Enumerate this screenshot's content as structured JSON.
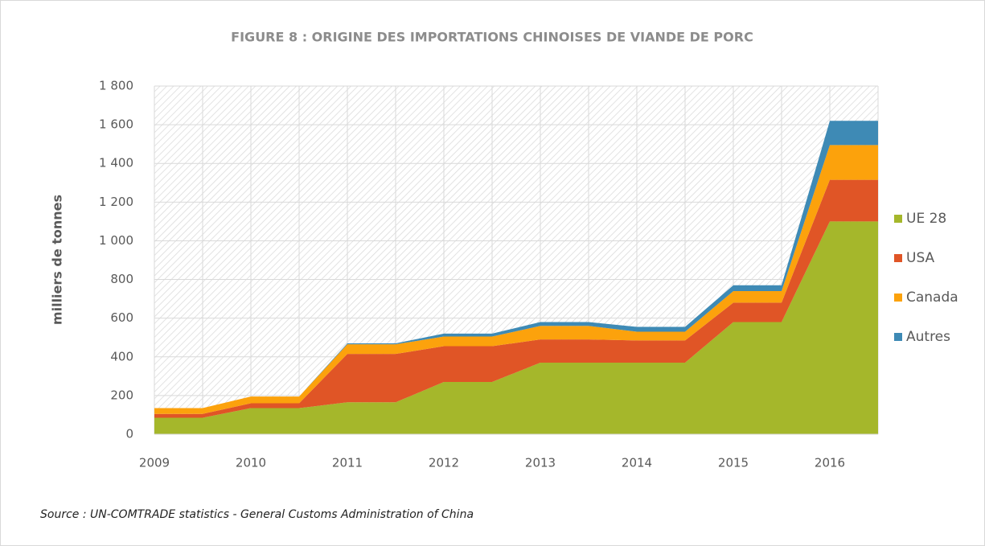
{
  "chart_data": {
    "type": "area",
    "title": "FIGURE 8 : ORIGINE DES IMPORTATIONS CHINOISES DE VIANDE DE PORC",
    "ylabel": "milliers de tonnes",
    "source": "Source : UN-COMTRADE statistics - General Customs Administration of China",
    "categories": [
      "2009",
      null,
      "2010",
      null,
      "2011",
      null,
      "2012",
      null,
      "2013",
      null,
      "2014",
      null,
      "2015",
      null,
      "2016",
      null
    ],
    "stacked": true,
    "series": [
      {
        "name": "UE 28",
        "color": "#a5b72b",
        "values": [
          85,
          85,
          135,
          135,
          165,
          165,
          270,
          270,
          370,
          370,
          370,
          370,
          580,
          580,
          1100,
          1100
        ]
      },
      {
        "name": "USA",
        "color": "#e05526",
        "values": [
          20,
          20,
          25,
          25,
          250,
          250,
          185,
          185,
          120,
          120,
          115,
          115,
          100,
          100,
          215,
          215
        ]
      },
      {
        "name": "Canada",
        "color": "#fca20c",
        "values": [
          30,
          30,
          35,
          35,
          50,
          50,
          50,
          50,
          70,
          70,
          45,
          45,
          60,
          60,
          180,
          180
        ]
      },
      {
        "name": "Autres",
        "color": "#3e8ab5",
        "values": [
          0,
          0,
          0,
          0,
          5,
          5,
          15,
          15,
          20,
          20,
          25,
          25,
          30,
          30,
          125,
          125
        ]
      }
    ],
    "ylim": [
      0,
      1800
    ],
    "yticks": [
      0,
      200,
      400,
      600,
      800,
      {
        "value": 1000,
        "label": "1 000"
      },
      {
        "value": 1200,
        "label": "1 200"
      },
      {
        "value": 1400,
        "label": "1 400"
      },
      {
        "value": 1600,
        "label": "1 600"
      },
      {
        "value": 1800,
        "label": "1 800"
      }
    ],
    "grid": true,
    "legend": "right"
  }
}
